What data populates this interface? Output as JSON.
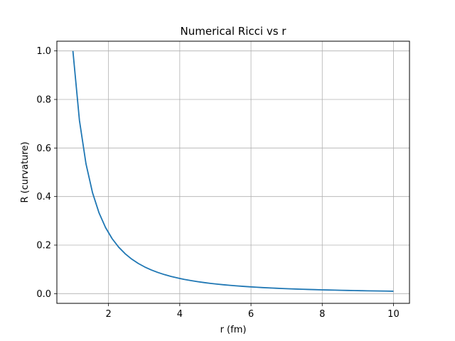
{
  "chart_data": {
    "type": "line",
    "title": "Numerical Ricci vs r",
    "xlabel": "r (fm)",
    "ylabel": "R (curvature)",
    "xlim": [
      0.55,
      10.45
    ],
    "ylim": [
      -0.04,
      1.04
    ],
    "xticks": [
      2,
      4,
      6,
      8,
      10
    ],
    "yticks": [
      0.0,
      0.2,
      0.4,
      0.6,
      0.8,
      1.0
    ],
    "xtick_labels": [
      "2",
      "4",
      "6",
      "8",
      "10"
    ],
    "ytick_labels": [
      "0.0",
      "0.2",
      "0.4",
      "0.6",
      "0.8",
      "1.0"
    ],
    "grid": true,
    "series": [
      {
        "color": "#1f77b4",
        "x": [
          1.0,
          1.1837,
          1.3673,
          1.551,
          1.7347,
          1.9184,
          2.102,
          2.2857,
          2.4694,
          2.6531,
          2.8367,
          3.0204,
          3.2041,
          3.3878,
          3.5714,
          3.7551,
          3.9388,
          4.1224,
          4.3061,
          4.4898,
          4.6735,
          4.8571,
          5.0408,
          5.2245,
          5.4082,
          5.5918,
          5.7755,
          5.9592,
          6.1429,
          6.3265,
          6.5102,
          6.6939,
          6.8776,
          7.0612,
          7.2449,
          7.4286,
          7.6122,
          7.7959,
          7.9796,
          8.1633,
          8.3469,
          8.5306,
          8.7143,
          8.898,
          9.0816,
          9.2653,
          9.449,
          9.6327,
          9.8163,
          10.0
        ],
        "y": [
          1.0,
          0.7137,
          0.5349,
          0.4157,
          0.3323,
          0.2717,
          0.2263,
          0.1914,
          0.164,
          0.1421,
          0.1243,
          0.1096,
          0.0974,
          0.0871,
          0.0784,
          0.0709,
          0.0645,
          0.0588,
          0.0539,
          0.0496,
          0.0458,
          0.0424,
          0.0394,
          0.0366,
          0.0342,
          0.032,
          0.03,
          0.0282,
          0.0265,
          0.025,
          0.0236,
          0.0223,
          0.0211,
          0.0201,
          0.0191,
          0.0181,
          0.0173,
          0.0165,
          0.0157,
          0.015,
          0.0144,
          0.0137,
          0.0132,
          0.0126,
          0.0121,
          0.0116,
          0.0112,
          0.0108,
          0.0104,
          0.01
        ]
      }
    ]
  }
}
